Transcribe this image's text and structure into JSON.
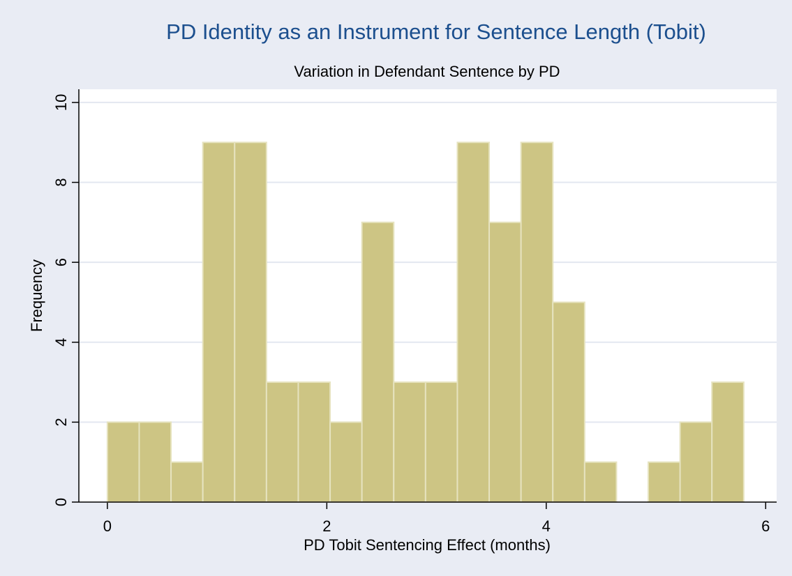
{
  "chart_data": {
    "type": "histogram",
    "title": "PD Identity as an Instrument for Sentence Length (Tobit)",
    "subtitle": "Variation in Defendant Sentence by PD",
    "x_label": "PD Tobit Sentencing Effect (months)",
    "y_label": "Frequency",
    "bins": [
      0,
      0.29,
      0.58,
      0.87,
      1.16,
      1.45,
      1.74,
      2.03,
      2.32,
      2.61,
      2.9,
      3.19,
      3.48,
      3.77,
      4.06,
      4.35,
      4.64,
      4.93,
      5.22,
      5.51,
      5.8
    ],
    "values": [
      2,
      2,
      1,
      9,
      9,
      3,
      3,
      2,
      7,
      3,
      3,
      9,
      7,
      9,
      5,
      1,
      0,
      1,
      2,
      3
    ],
    "color": "#cdc584",
    "xlim": [
      -0.26,
      6.1
    ],
    "xticks": [
      0,
      2,
      4,
      6
    ],
    "ylim": [
      0,
      10.33
    ],
    "yticks": [
      0,
      2,
      4,
      6,
      8,
      10
    ],
    "grid": true
  }
}
